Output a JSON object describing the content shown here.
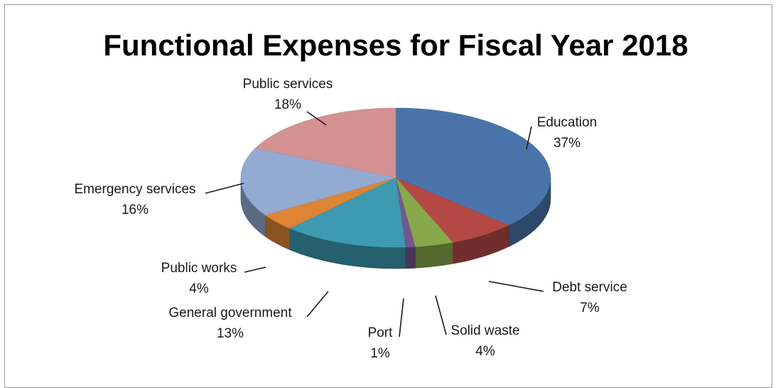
{
  "chart_data": {
    "type": "pie",
    "title": "Functional Expenses for Fiscal Year 2018",
    "slices": [
      {
        "name": "Education",
        "value": 37,
        "label": "37%",
        "color": "#4a74a9"
      },
      {
        "name": "Debt service",
        "value": 7,
        "label": "7%",
        "color": "#b44845"
      },
      {
        "name": "Solid waste",
        "value": 4,
        "label": "4%",
        "color": "#89a84b"
      },
      {
        "name": "Port",
        "value": 1,
        "label": "1%",
        "color": "#74578f"
      },
      {
        "name": "General government",
        "value": 13,
        "label": "13%",
        "color": "#3d9ab0"
      },
      {
        "name": "Public works",
        "value": 4,
        "label": "4%",
        "color": "#dd8435"
      },
      {
        "name": "Emergency services",
        "value": 16,
        "label": "16%",
        "color": "#93aad3"
      },
      {
        "name": "Public services",
        "value": 18,
        "label": "18%",
        "color": "#d39291"
      }
    ],
    "data_labels": "outside-with-leader-lines",
    "style": "3d-pie"
  }
}
